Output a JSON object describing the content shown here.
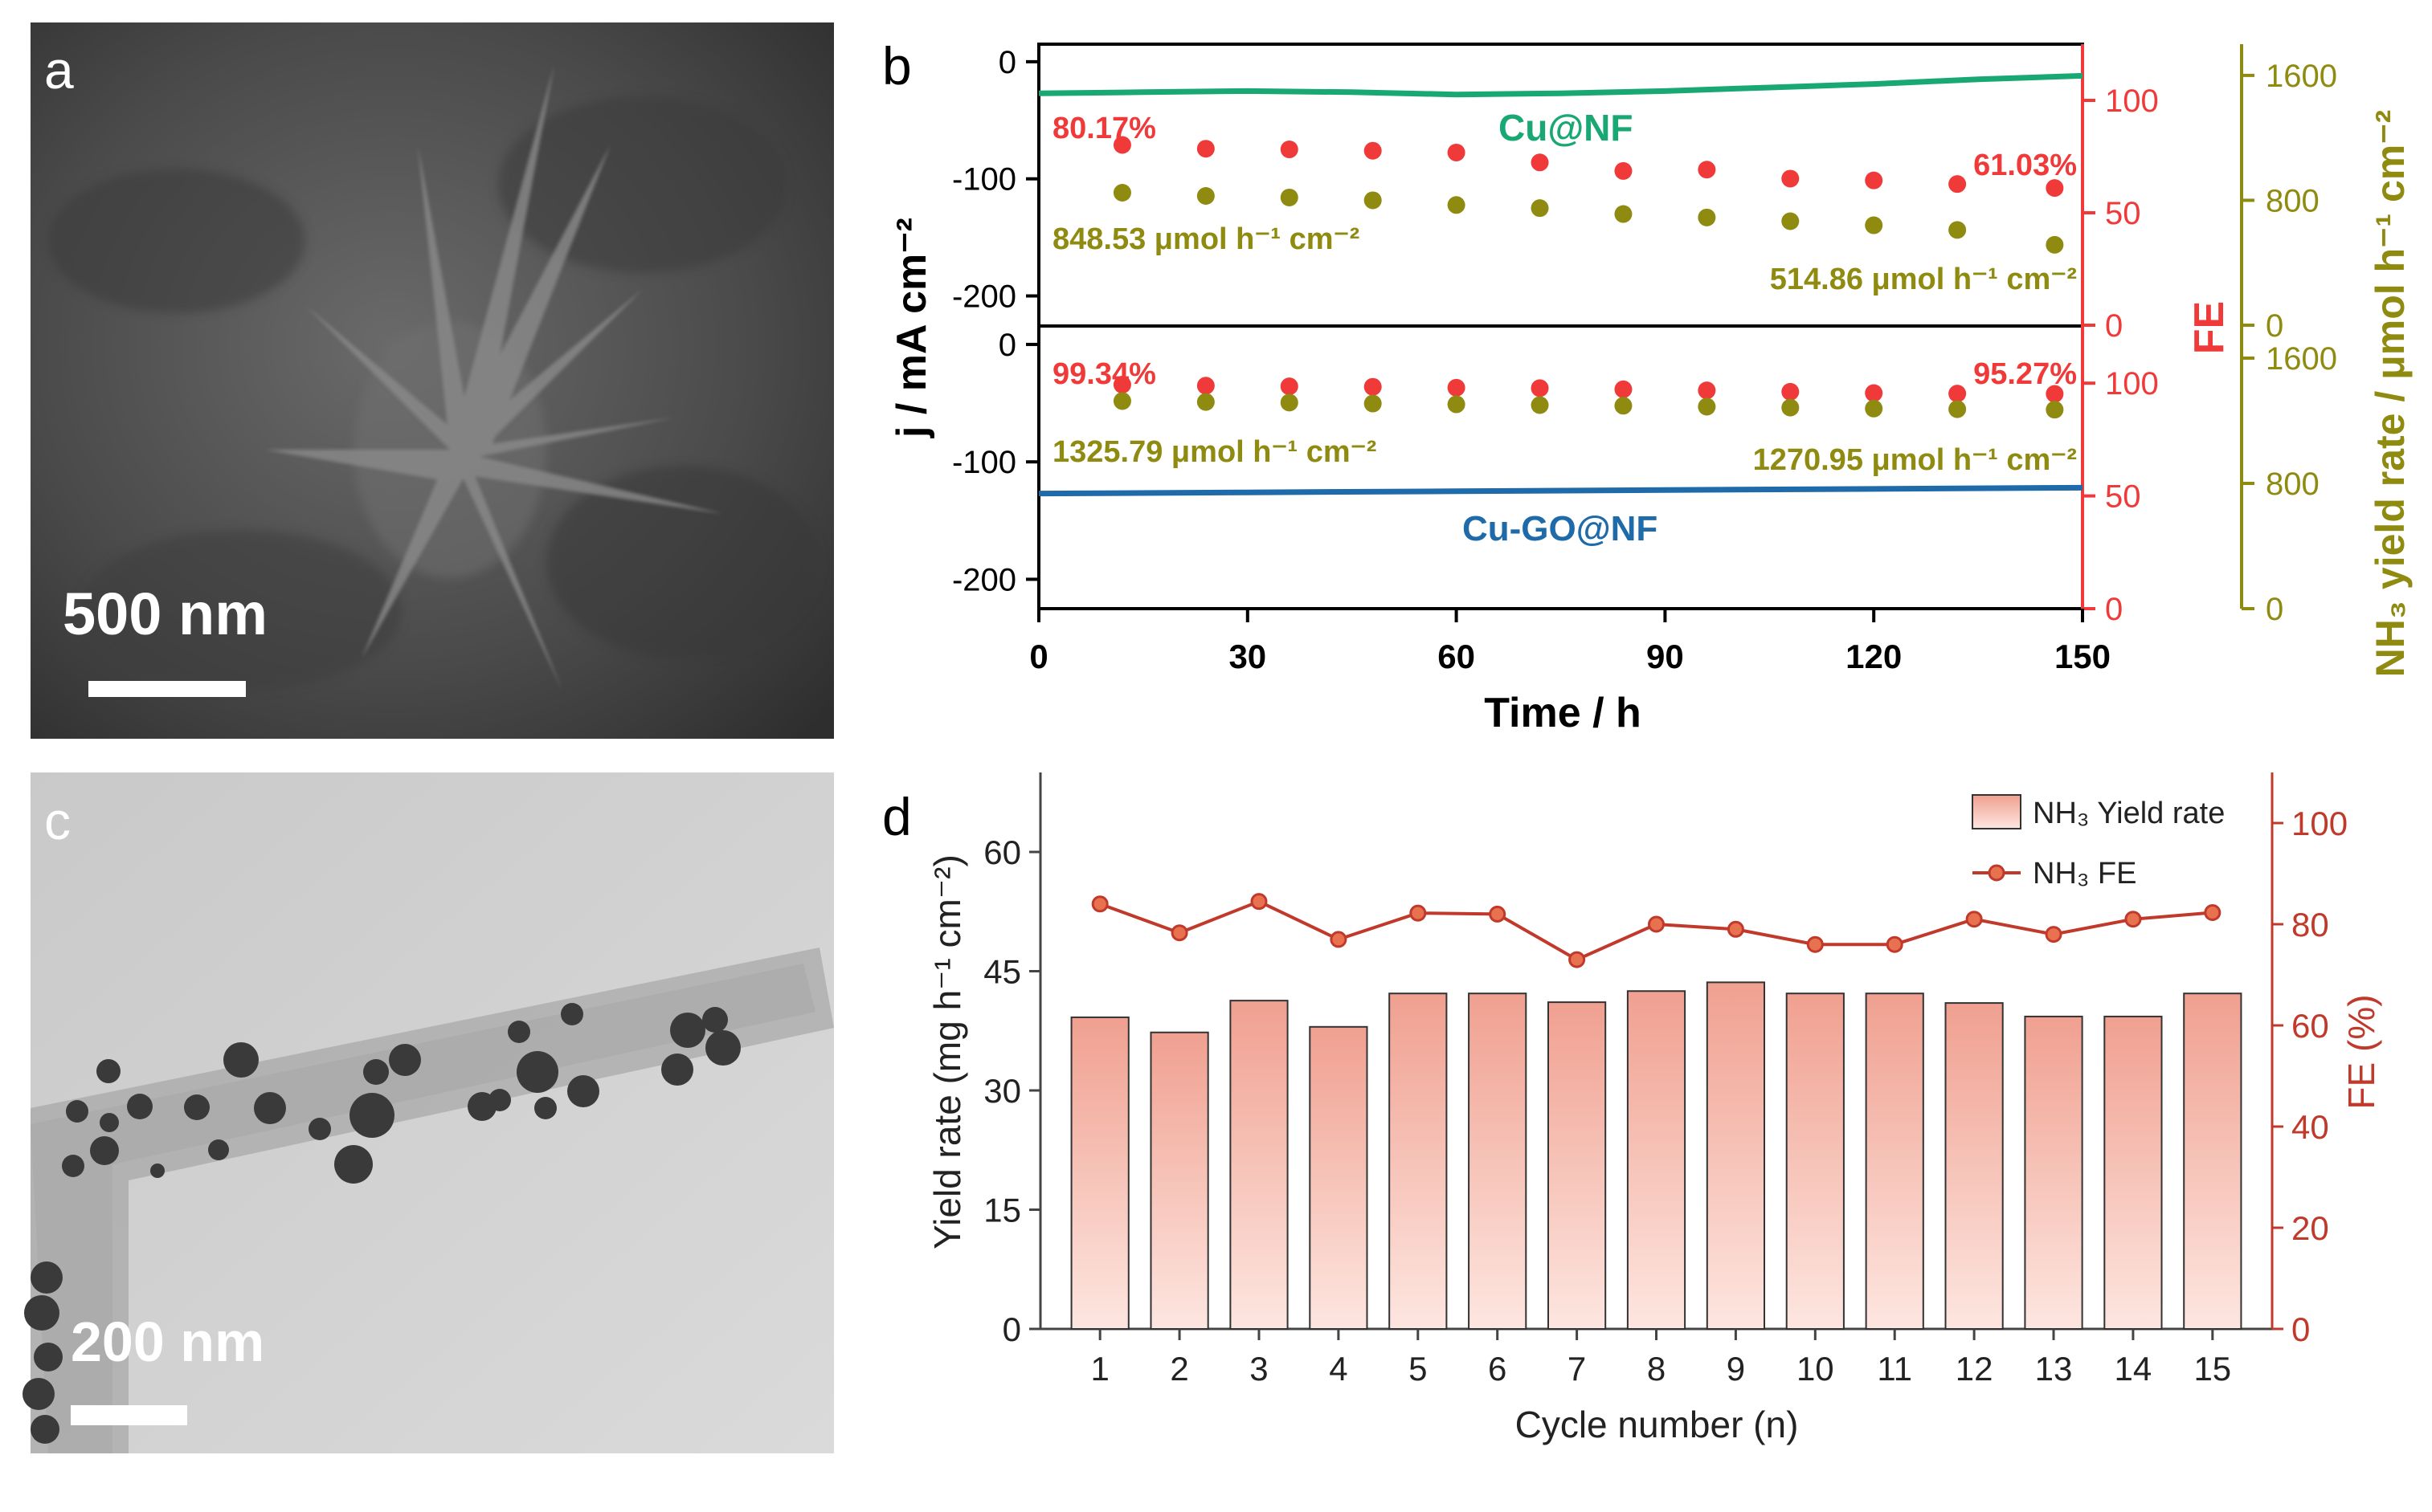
{
  "panels": {
    "a": {
      "label": "a",
      "scale_bar_text": "500 nm"
    },
    "b": {
      "label": "b"
    },
    "c": {
      "label": "c",
      "scale_bar_text": "200 nm"
    },
    "d": {
      "label": "d"
    }
  },
  "colors": {
    "cu_nf": "#19a874",
    "cu_go_nf": "#1f6aa8",
    "fe_red": "#f03a3a",
    "yield_olive": "#8f8a10",
    "bar_fill_top": "#f0a090",
    "bar_fill_bottom": "#fde6e0",
    "d_red": "#c0392b"
  },
  "chart_data": [
    {
      "type": "line",
      "panel": "b",
      "xlabel": "Time / h",
      "ylabel_left": "j / mA cm⁻²",
      "ylabel_fe": "FE",
      "ylabel_yield": "NH₃ yield rate / μmol h⁻¹ cm⁻²",
      "x_ticks": [
        0,
        30,
        60,
        90,
        120,
        150
      ],
      "xlim": [
        0,
        150
      ],
      "subplots": [
        {
          "name": "Cu@NF",
          "curve_label": "Cu@NF",
          "j_ylim": [
            -225,
            15
          ],
          "j_ticks": [
            0,
            -100,
            -200
          ],
          "fe_ylim": [
            0,
            125
          ],
          "fe_ticks": [
            0,
            50,
            100
          ],
          "yield_ylim": [
            0,
            1800
          ],
          "yield_ticks": [
            0,
            800,
            1600
          ],
          "current": {
            "x": [
              0,
              15,
              30,
              45,
              60,
              75,
              90,
              105,
              120,
              135,
              150
            ],
            "y": [
              -27,
              -26,
              -25,
              -26,
              -28,
              -27,
              -25,
              -22,
              -19,
              -15,
              -12
            ]
          },
          "time_points": [
            12,
            24,
            36,
            48,
            60,
            72,
            84,
            96,
            108,
            120,
            132,
            146
          ],
          "fe": [
            80.17,
            78.5,
            78.2,
            77.6,
            76.8,
            72.4,
            68.6,
            69.2,
            65.2,
            64.4,
            62.8,
            61.03
          ],
          "yield": [
            848.53,
            828,
            818,
            800,
            770,
            750,
            712,
            690,
            666,
            640,
            610,
            514.86
          ],
          "fe_start_label": "80.17%",
          "fe_end_label": "61.03%",
          "yield_start_label": "848.53 μmol h⁻¹ cm⁻²",
          "yield_end_label": "514.86 μmol h⁻¹ cm⁻²"
        },
        {
          "name": "Cu-GO@NF",
          "curve_label": "Cu-GO@NF",
          "j_ylim": [
            -225,
            15
          ],
          "j_ticks": [
            0,
            -100,
            -200
          ],
          "fe_ylim": [
            0,
            125
          ],
          "fe_ticks": [
            0,
            50,
            100
          ],
          "yield_ylim": [
            0,
            1800
          ],
          "yield_ticks": [
            0,
            800,
            1600
          ],
          "current": {
            "x": [
              0,
              30,
              60,
              90,
              120,
              150
            ],
            "y": [
              -127,
              -126,
              -125,
              -124,
              -123,
              -122
            ]
          },
          "time_points": [
            12,
            24,
            36,
            48,
            60,
            72,
            84,
            96,
            108,
            120,
            132,
            146
          ],
          "fe": [
            99.34,
            98.9,
            98.6,
            98.4,
            98.0,
            97.8,
            97.3,
            96.8,
            96.2,
            95.6,
            95.4,
            95.27
          ],
          "yield": [
            1325.79,
            1320,
            1316,
            1310,
            1305,
            1300,
            1296,
            1290,
            1284,
            1278,
            1274,
            1270.95
          ],
          "fe_start_label": "99.34%",
          "fe_end_label": "95.27%",
          "yield_start_label": "1325.79 μmol h⁻¹ cm⁻²",
          "yield_end_label": "1270.95 μmol h⁻¹ cm⁻²"
        }
      ]
    },
    {
      "type": "bar",
      "panel": "d",
      "xlabel": "Cycle number (n)",
      "ylabel": "Yield rate (mg h⁻¹ cm⁻²)",
      "y2label": "FE (%)",
      "categories": [
        "1",
        "2",
        "3",
        "4",
        "5",
        "6",
        "7",
        "8",
        "9",
        "10",
        "11",
        "12",
        "13",
        "14",
        "15"
      ],
      "ylim": [
        0,
        70
      ],
      "y_ticks": [
        0,
        15,
        30,
        45,
        60
      ],
      "y2lim": [
        0,
        110
      ],
      "y2_ticks": [
        0,
        20,
        40,
        60,
        80,
        100
      ],
      "series": [
        {
          "name": "NH₃ Yield rate",
          "kind": "bar",
          "values": [
            39.2,
            37.3,
            41.3,
            38.0,
            42.2,
            42.2,
            41.1,
            42.5,
            43.6,
            42.2,
            42.2,
            41.0,
            39.3,
            39.3,
            42.2
          ]
        },
        {
          "name": "NH₃ FE",
          "kind": "line",
          "values": [
            84.0,
            78.3,
            84.5,
            77.0,
            82.2,
            82.0,
            73.0,
            80.0,
            79.0,
            76.0,
            76.0,
            81.0,
            78.0,
            81.0,
            82.3
          ]
        }
      ],
      "legend": [
        {
          "label": "NH₃ Yield rate",
          "kind": "bar"
        },
        {
          "label": "NH₃ FE",
          "kind": "line"
        }
      ],
      "legend_position": "top-right"
    }
  ]
}
